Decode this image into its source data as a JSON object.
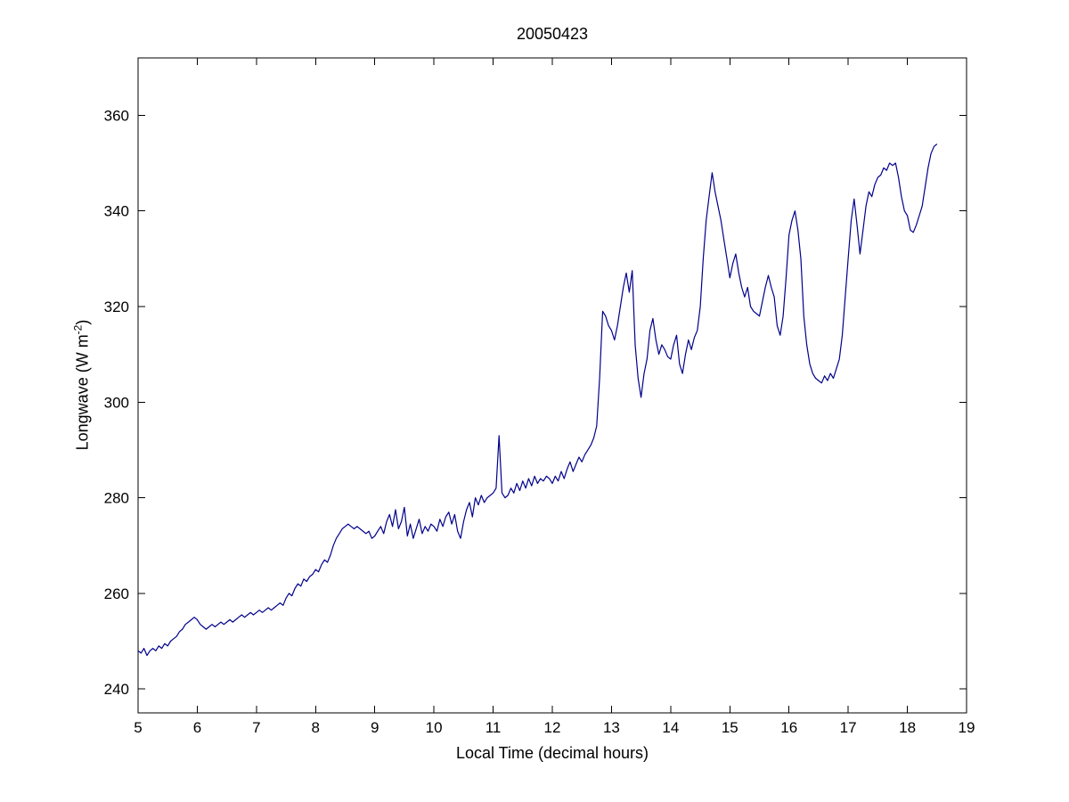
{
  "chart_data": {
    "type": "line",
    "title": "20050423",
    "xlabel": "Local Time (decimal hours)",
    "ylabel": "Longwave (W m^-2)",
    "ylabel_prefix": "Longwave (W m",
    "ylabel_sup": "-2",
    "ylabel_suffix": ")",
    "xlim": [
      5,
      19
    ],
    "ylim": [
      235,
      372
    ],
    "x_ticks": [
      5,
      6,
      7,
      8,
      9,
      10,
      11,
      12,
      13,
      14,
      15,
      16,
      17,
      18,
      19
    ],
    "y_ticks": [
      240,
      260,
      280,
      300,
      320,
      340,
      360
    ],
    "grid": false,
    "legend": "none",
    "line_color": "#00008B",
    "axis_color": "#000000",
    "x_start": 5.0,
    "x_step": 0.05,
    "values": [
      248,
      247.5,
      248.5,
      247,
      248,
      248.5,
      248,
      249,
      248.5,
      249.5,
      249,
      250,
      250.5,
      251,
      252,
      252.5,
      253.5,
      254,
      254.5,
      255,
      254.5,
      253.5,
      253,
      252.5,
      253,
      253.5,
      253,
      253.5,
      254,
      253.5,
      254,
      254.5,
      254,
      254.5,
      255,
      255.5,
      255,
      255.5,
      256,
      255.5,
      256,
      256.5,
      256,
      256.5,
      257,
      256.5,
      257,
      257.5,
      258,
      257.5,
      259,
      260,
      259.5,
      261,
      262,
      261.5,
      263,
      262.5,
      263.5,
      264,
      265,
      264.5,
      266,
      267,
      266.5,
      268,
      270,
      271.5,
      272.5,
      273.5,
      274,
      274.5,
      274,
      273.5,
      274,
      273.5,
      273,
      272.5,
      273,
      271.5,
      272,
      273,
      274,
      272.5,
      275,
      276.5,
      274,
      277.5,
      273.5,
      275,
      278,
      272,
      274.5,
      271.5,
      273.5,
      275.5,
      272.5,
      274,
      273,
      274.5,
      274,
      273,
      275.5,
      274,
      276,
      277,
      274.5,
      276.5,
      273,
      271.5,
      275,
      277.5,
      279,
      276,
      280,
      278.5,
      280.5,
      279,
      280,
      280.5,
      281,
      282,
      293,
      281,
      280,
      280.5,
      282,
      281,
      283,
      281.5,
      283.5,
      282,
      284,
      282.5,
      284.5,
      283,
      284,
      283.5,
      284.5,
      284,
      283,
      284.5,
      283.5,
      285.5,
      284,
      286,
      287.5,
      285.5,
      287,
      288.5,
      287.5,
      289,
      290,
      291,
      292.5,
      295,
      305,
      319,
      318,
      316,
      315,
      313,
      316,
      320,
      324,
      327,
      323,
      327.5,
      312,
      305,
      301,
      306,
      309,
      315,
      317.5,
      313,
      310,
      312,
      311,
      309.5,
      309,
      312,
      314,
      308,
      306,
      310,
      313,
      311,
      313.5,
      315,
      320,
      330,
      338,
      343,
      348,
      344,
      341,
      338,
      334,
      330,
      326,
      329,
      331,
      327,
      324,
      322,
      324,
      320,
      319,
      318.5,
      318,
      321,
      324,
      326.5,
      324,
      322,
      316,
      314,
      318,
      326,
      335,
      338,
      340,
      336,
      330,
      318,
      312,
      308,
      306,
      305,
      304.5,
      304,
      305.5,
      304.5,
      306,
      305,
      307,
      309,
      314,
      322,
      330,
      338,
      342.5,
      337,
      331,
      336,
      341,
      344,
      343,
      345.5,
      347,
      347.5,
      349,
      348.5,
      350,
      349.5,
      350,
      347,
      343,
      340,
      339,
      336,
      335.5,
      337,
      339,
      341,
      345,
      349,
      352,
      353.5,
      354
    ]
  }
}
